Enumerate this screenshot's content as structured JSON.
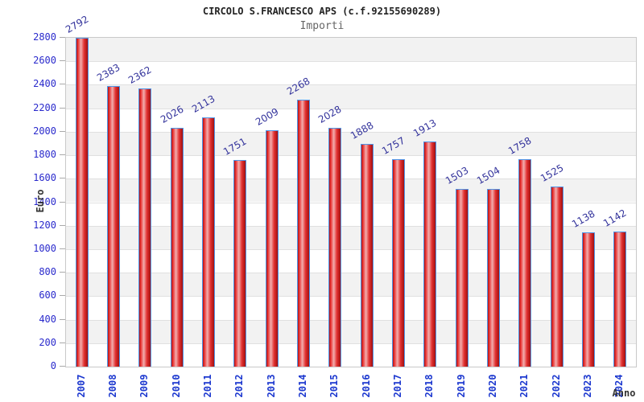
{
  "header": {
    "title": "CIRCOLO S.FRANCESCO APS (c.f.92155690289)",
    "subtitle": "Importi"
  },
  "chart_data": {
    "type": "bar",
    "title": "CIRCOLO S.FRANCESCO APS (c.f.92155690289)",
    "subtitle": "Importi",
    "xlabel": "Anno",
    "ylabel": "Euro",
    "categories": [
      "2007",
      "2008",
      "2009",
      "2010",
      "2011",
      "2012",
      "2013",
      "2014",
      "2015",
      "2016",
      "2017",
      "2018",
      "2019",
      "2020",
      "2021",
      "2022",
      "2023",
      "2024"
    ],
    "values": [
      2792,
      2383,
      2362,
      2026,
      2113,
      1751,
      2009,
      2268,
      2028,
      1888,
      1757,
      1913,
      1503,
      1504,
      1758,
      1525,
      1138,
      1142
    ],
    "ylim": [
      0,
      2800
    ],
    "ytick_step": 200,
    "legend": "none",
    "grid": "horizontal gridlines every 200 with alternating gray/white bands",
    "bar_value_labels_rotated": true,
    "x_labels_rotated_90": true,
    "colors": {
      "bar_fill": "#e23030",
      "bar_fill_highlight": "#f2aeae",
      "bar_border": "#4f96e8",
      "axis_tick_label": "#2a2acc",
      "x_year_label": "#1c38cf",
      "value_label": "#32329b",
      "band_gray": "#f2f2f2",
      "gridline": "#e0e0e0",
      "title_color": "#222222",
      "subtitle_color": "#666666",
      "axis_title_color": "#333333"
    }
  }
}
